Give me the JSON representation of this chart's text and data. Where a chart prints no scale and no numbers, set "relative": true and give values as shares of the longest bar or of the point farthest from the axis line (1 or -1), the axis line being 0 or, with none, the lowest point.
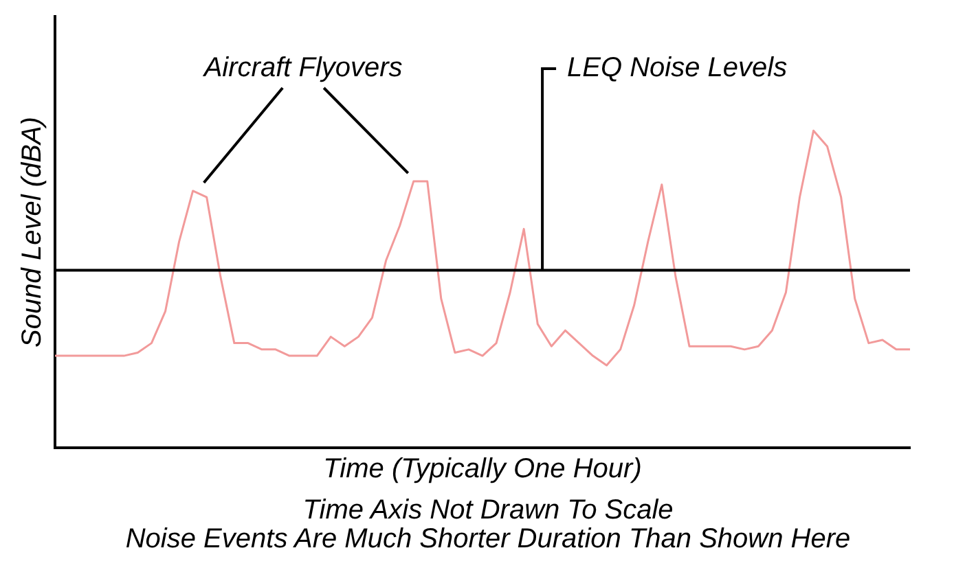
{
  "chart_data": {
    "type": "line",
    "relative": true,
    "xlabel": "Time (Typically One Hour)",
    "ylabel": "Sound Level (dBA)",
    "categories": [
      null,
      null,
      null,
      null,
      null,
      null,
      null,
      null,
      null,
      null,
      null,
      null,
      null,
      null,
      null,
      null,
      null,
      null,
      null,
      null,
      null,
      null,
      null,
      null,
      null,
      null,
      null,
      null,
      null,
      null,
      null,
      null,
      null,
      null,
      null,
      null,
      null,
      null,
      null,
      null,
      null,
      null,
      null,
      null,
      null,
      null,
      null,
      null,
      null,
      null,
      null,
      null,
      null,
      null,
      null,
      null,
      null,
      null,
      null,
      null,
      null,
      null,
      null
    ],
    "series": [
      {
        "color": "#f29a9a",
        "values": [
          0.29,
          0.29,
          0.29,
          0.29,
          0.29,
          0.29,
          0.3,
          0.33,
          0.43,
          0.65,
          0.81,
          0.79,
          0.54,
          0.33,
          0.33,
          0.31,
          0.31,
          0.29,
          0.29,
          0.29,
          0.35,
          0.32,
          0.35,
          0.41,
          0.59,
          0.7,
          0.84,
          0.84,
          0.47,
          0.3,
          0.31,
          0.29,
          0.33,
          0.49,
          0.69,
          0.39,
          0.32,
          0.37,
          0.33,
          0.29,
          0.26,
          0.31,
          0.45,
          0.65,
          0.83,
          0.54,
          0.32,
          0.32,
          0.32,
          0.32,
          0.31,
          0.32,
          0.37,
          0.49,
          0.79,
          1,
          0.95,
          0.79,
          0.47,
          0.33,
          0.34,
          0.31,
          0.31
        ]
      }
    ],
    "ref_lines": [
      {
        "axis": "y",
        "value": 0.56,
        "label": "LEQ Noise Levels",
        "color": "#000000"
      }
    ],
    "annotations": [
      "Aircraft Flyovers",
      "Time Axis Not Drawn To Scale",
      "Noise Events Are Much Shorter Duration Than Shown Here"
    ],
    "grid": false,
    "legend": false,
    "marker": "none",
    "line_style": "solid"
  }
}
